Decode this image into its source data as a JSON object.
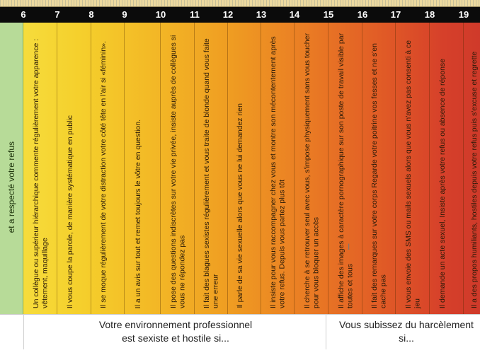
{
  "scale": {
    "numbers": [
      "6",
      "7",
      "8",
      "9",
      "10",
      "11",
      "12",
      "13",
      "14",
      "15",
      "16",
      "17",
      "18",
      "19"
    ]
  },
  "left_strip": {
    "text": "et a respecté votre refus"
  },
  "columns": [
    "Un collègue ou supérieur hiérarchique commente régulièrement votre apparence : vêtement, maquillage",
    "Il vous coupe la parole, de manière systématique en public",
    "Il se  moque régulièrement de votre distraction votre côté tête en l'air si «féminin».",
    "Il a un avis sur tout et remet toujours le vôtre en question.",
    "Il pose des questions indiscrètes sur votre vie privée, insiste auprès de collègues si vous ne répondez pas",
    "Il fait des blagues sexistes régulièrement et vous traite de blonde quand vous faite une erreur",
    "Il parle de sa vie sexuelle alors que vous ne lui demandez rien",
    "Il insiste pour vous raccompagner chez vous et montre son mécontentement après votre refus. Depuis vous partez plus tôt",
    "Il cherche à se retrouver seul avec vous, s'impose physiquement sans vous toucher pour vous bloquer un accès",
    "Il affiche des images à caractère pornographique sur son poste de travail visible par toutes et tous",
    "Il fait des remarques sur votre corps Regarde votre poitrine vos fesses et ne s'en cache pas",
    "Il vous envoie des SMS ou mails sexuels alors que vous n'avez pas consenti à ce jeu",
    "Il demande un acte sexuel, Insiste après votre refus ou absence de réponse",
    "Il a des propos humiliants, hostiles depuis votre refus puis s'excuse et regrette d'avoir été offensant"
  ],
  "footer": {
    "left_caption_line1": "Votre environnement professionnel",
    "left_caption_line2": "est sexiste et hostile si...",
    "right_caption_line1": "Vous subissez du harcèlement",
    "right_caption_line2": "si..."
  },
  "colors": {
    "green": "#b7db98",
    "yellow": "#f6dc3c",
    "orange": "#ea7c24",
    "red": "#cf3a2a",
    "bar": "#0b0b0b"
  }
}
